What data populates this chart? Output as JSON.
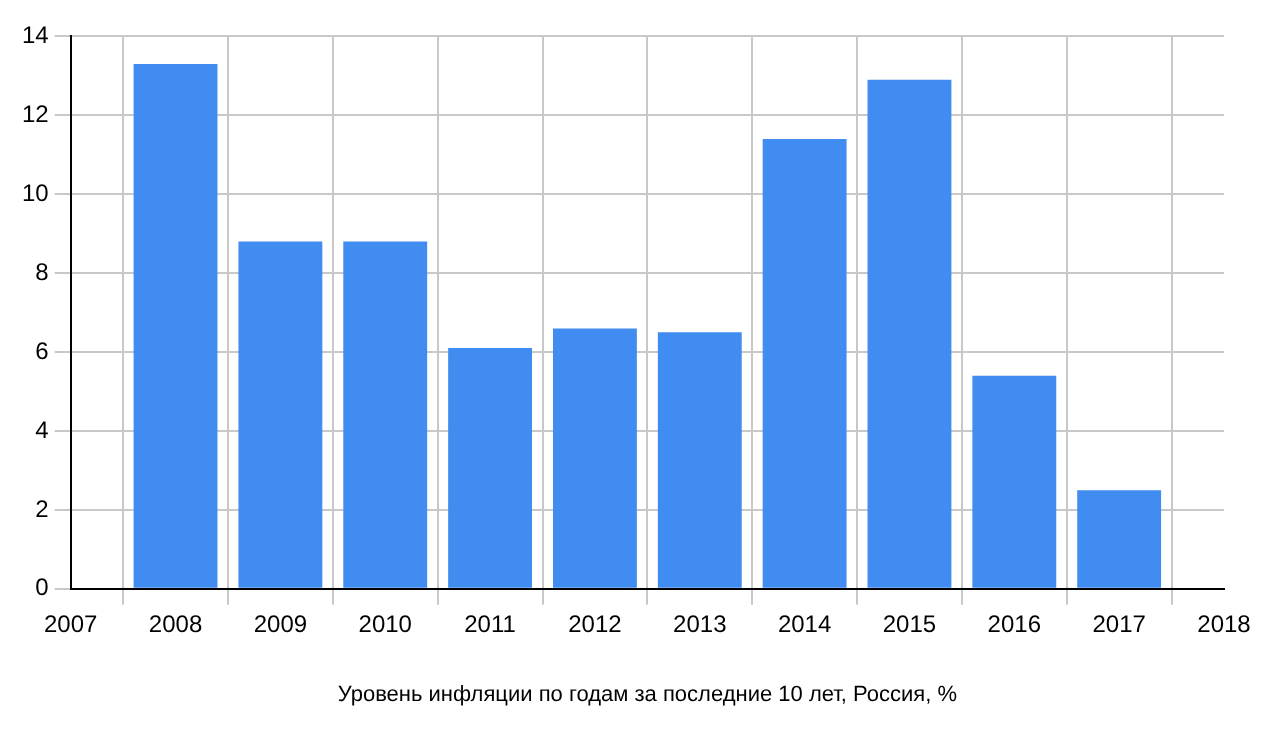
{
  "chart_data": {
    "type": "bar",
    "xlabel": "Уровень инфляции по годам за последние 10 лет, Россия, %",
    "x": [
      2008,
      2009,
      2010,
      2011,
      2012,
      2013,
      2014,
      2015,
      2016,
      2017
    ],
    "values": [
      13.3,
      8.8,
      8.8,
      6.1,
      6.6,
      6.5,
      11.4,
      12.9,
      5.4,
      2.5
    ],
    "color": "#418cf0",
    "xlim": [
      2007,
      2018
    ],
    "xticks": [
      2007,
      2008,
      2009,
      2010,
      2011,
      2012,
      2013,
      2014,
      2015,
      2016,
      2017,
      2018
    ],
    "ylim": [
      0,
      14
    ],
    "yticks": [
      0,
      2,
      4,
      6,
      8,
      10,
      12,
      14
    ],
    "grid": true
  }
}
